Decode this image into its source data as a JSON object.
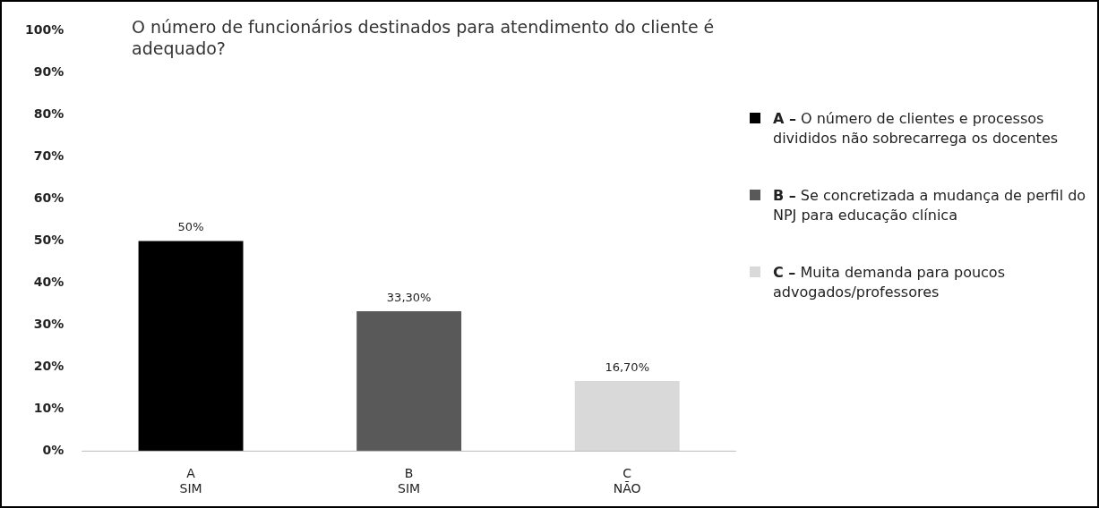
{
  "chart_data": {
    "type": "bar",
    "title": "O número de funcionários destinados para atendimento do cliente é adequado?",
    "categories": [
      "A\nSIM",
      "B\nSIM",
      "C\nNÃO"
    ],
    "series": [
      {
        "name": "A – O número de clientes e processos divididos não sobrecarrega os docentes",
        "color": "#000000",
        "values": [
          50,
          null,
          null
        ],
        "value_labels": [
          "50%",
          null,
          null
        ]
      },
      {
        "name": "B – Se concretizada a mudança de perfil do NPJ para educação clínica",
        "color": "#595959",
        "values": [
          null,
          33.3,
          null
        ],
        "value_labels": [
          null,
          "33,30%",
          null
        ]
      },
      {
        "name": "C – Muita demanda para poucos advogados/professores",
        "color": "#d9d9d9",
        "values": [
          null,
          null,
          16.7
        ],
        "value_labels": [
          null,
          null,
          "16,70%"
        ]
      }
    ],
    "ylim": [
      0,
      100
    ],
    "yticks": [
      {
        "value": 0,
        "label": "0%"
      },
      {
        "value": 10,
        "label": "10%"
      },
      {
        "value": 20,
        "label": "20%"
      },
      {
        "value": 30,
        "label": "30%"
      },
      {
        "value": 40,
        "label": "40%"
      },
      {
        "value": 50,
        "label": "50%"
      },
      {
        "value": 60,
        "label": "60%"
      },
      {
        "value": 70,
        "label": "70%"
      },
      {
        "value": 80,
        "label": "80%"
      },
      {
        "value": 90,
        "label": "90%"
      },
      {
        "value": 100,
        "label": "100%"
      }
    ],
    "grid": false,
    "legend": "right"
  }
}
